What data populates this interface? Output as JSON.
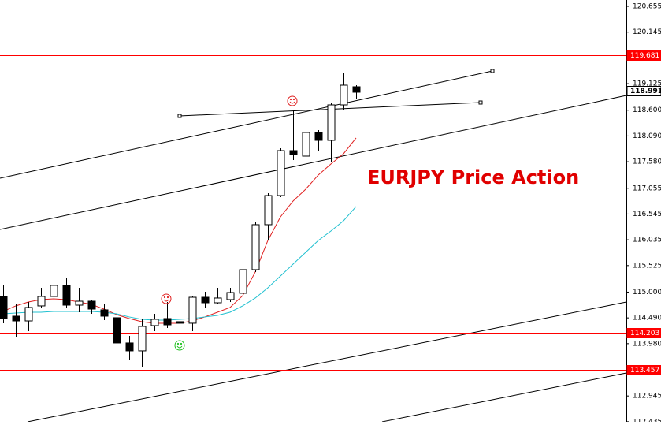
{
  "chart_data": {
    "type": "candlestick",
    "annotation": "EURJPY Price Action",
    "ylim": [
      112.433,
      120.78
    ],
    "yticks": [
      120.655,
      120.145,
      119.125,
      {
        "value": 118.6,
        "label": "118.600"
      },
      {
        "value": 118.09,
        "label": "118.090"
      },
      {
        "value": 117.58,
        "label": "117.580"
      },
      117.055,
      116.545,
      116.035,
      115.525,
      {
        "value": 115,
        "label": "115.000"
      },
      {
        "value": 114.49,
        "label": "114.490"
      },
      {
        "value": 113.98,
        "label": "113.980"
      },
      112.945,
      112.435
    ],
    "levels": [
      {
        "value": 119.681,
        "color": "#ff0000"
      },
      {
        "value": 118.991,
        "color": "#c0c0c0"
      },
      {
        "value": 114.203,
        "color": "#ff0000"
      },
      {
        "value": 113.457,
        "color": "#ff0000"
      }
    ],
    "candles": [
      {
        "open": 114.914,
        "close": 114.477,
        "high": 115.133,
        "low": 114.384
      },
      {
        "open": 114.524,
        "close": 114.43,
        "high": 114.774,
        "low": 114.103
      },
      {
        "open": 114.43,
        "close": 114.696,
        "high": 114.805,
        "low": 114.228
      },
      {
        "open": 114.727,
        "close": 114.914,
        "high": 115.086,
        "low": 114.696
      },
      {
        "open": 114.914,
        "close": 115.133,
        "high": 115.195,
        "low": 114.852
      },
      {
        "open": 115.133,
        "close": 114.742,
        "high": 115.289,
        "low": 114.696
      },
      {
        "open": 114.742,
        "close": 114.82,
        "high": 115.086,
        "low": 114.602
      },
      {
        "open": 114.82,
        "close": 114.664,
        "high": 114.852,
        "low": 114.571
      },
      {
        "open": 114.649,
        "close": 114.524,
        "high": 114.758,
        "low": 114.446
      },
      {
        "open": 114.493,
        "close": 113.994,
        "high": 114.571,
        "low": 113.604
      },
      {
        "open": 113.994,
        "close": 113.838,
        "high": 114.134,
        "low": 113.666
      },
      {
        "open": 113.838,
        "close": 114.321,
        "high": 114.462,
        "low": 113.526
      },
      {
        "open": 114.337,
        "close": 114.462,
        "high": 114.571,
        "low": 114.228
      },
      {
        "open": 114.477,
        "close": 114.352,
        "high": 114.805,
        "low": 114.29
      },
      {
        "open": 114.415,
        "close": 114.384,
        "high": 114.54,
        "low": 114.228
      },
      {
        "open": 114.384,
        "close": 114.898,
        "high": 114.93,
        "low": 114.228
      },
      {
        "open": 114.898,
        "close": 114.789,
        "high": 115.008,
        "low": 114.696
      },
      {
        "open": 114.789,
        "close": 114.883,
        "high": 115.086,
        "low": 114.758
      },
      {
        "open": 114.852,
        "close": 114.992,
        "high": 115.086,
        "low": 114.805
      },
      {
        "open": 114.977,
        "close": 115.445,
        "high": 115.476,
        "low": 114.852
      },
      {
        "open": 115.445,
        "close": 116.334,
        "high": 116.381,
        "low": 115.398
      },
      {
        "open": 116.334,
        "close": 116.911,
        "high": 116.958,
        "low": 116.022
      },
      {
        "open": 116.911,
        "close": 117.8,
        "high": 117.847,
        "low": 116.88
      },
      {
        "open": 117.8,
        "close": 117.722,
        "high": 118.596,
        "low": 117.613
      },
      {
        "open": 117.691,
        "close": 118.159,
        "high": 118.206,
        "low": 117.613
      },
      {
        "open": 118.159,
        "close": 118.003,
        "high": 118.206,
        "low": 117.785
      },
      {
        "open": 118.003,
        "close": 118.705,
        "high": 118.752,
        "low": 117.582
      },
      {
        "open": 118.705,
        "close": 119.095,
        "high": 119.345,
        "low": 118.596
      },
      {
        "open": 119.064,
        "close": 118.955,
        "high": 119.095,
        "low": 118.814
      }
    ],
    "series": [
      {
        "color": "#e02020",
        "values": [
          114.618,
          114.727,
          114.805,
          114.852,
          114.867,
          114.852,
          114.805,
          114.758,
          114.664,
          114.555,
          114.477,
          114.415,
          114.384,
          114.384,
          114.384,
          114.43,
          114.509,
          114.602,
          114.696,
          114.93,
          115.398,
          116.022,
          116.49,
          116.802,
          117.036,
          117.317,
          117.535,
          117.738,
          118.05
        ]
      },
      {
        "color": "#20c0d0",
        "values": [
          114.571,
          114.587,
          114.602,
          114.602,
          114.618,
          114.618,
          114.618,
          114.618,
          114.602,
          114.571,
          114.509,
          114.462,
          114.446,
          114.446,
          114.462,
          114.477,
          114.509,
          114.54,
          114.602,
          114.727,
          114.883,
          115.086,
          115.32,
          115.554,
          115.788,
          116.022,
          116.209,
          116.412,
          116.693
        ]
      }
    ]
  }
}
